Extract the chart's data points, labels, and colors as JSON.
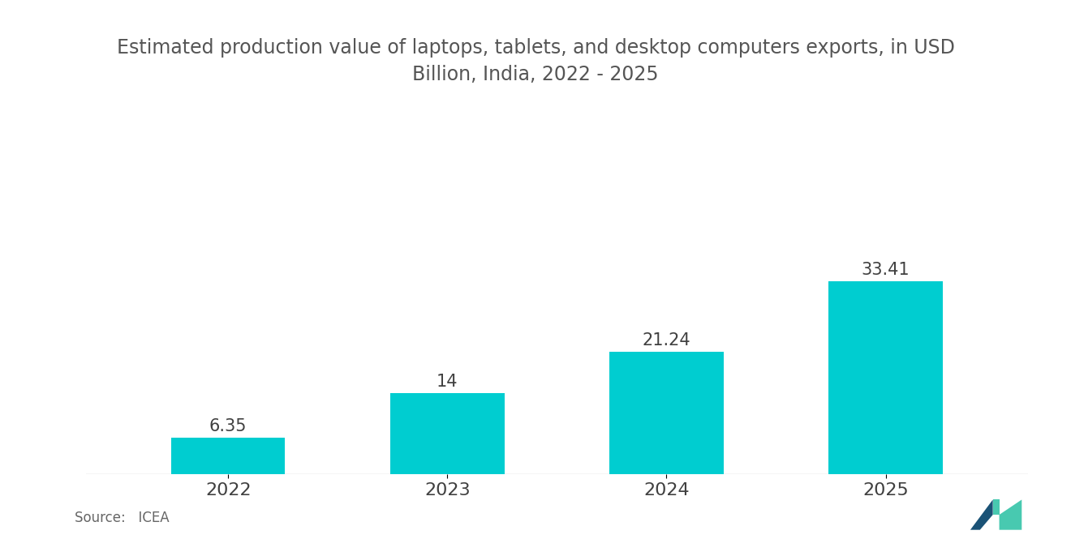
{
  "title": "Estimated production value of laptops, tablets, and desktop computers exports, in USD\nBillion, India, 2022 - 2025",
  "categories": [
    "2022",
    "2023",
    "2024",
    "2025"
  ],
  "values": [
    6.35,
    14,
    21.24,
    33.41
  ],
  "bar_color": "#00CDD0",
  "label_color": "#404040",
  "title_color": "#555555",
  "background_color": "#ffffff",
  "source_text": "Source:   ICEA",
  "bar_width": 0.52,
  "ylim": [
    0,
    42
  ],
  "title_fontsize": 17,
  "label_fontsize": 15,
  "tick_fontsize": 16,
  "source_fontsize": 12
}
